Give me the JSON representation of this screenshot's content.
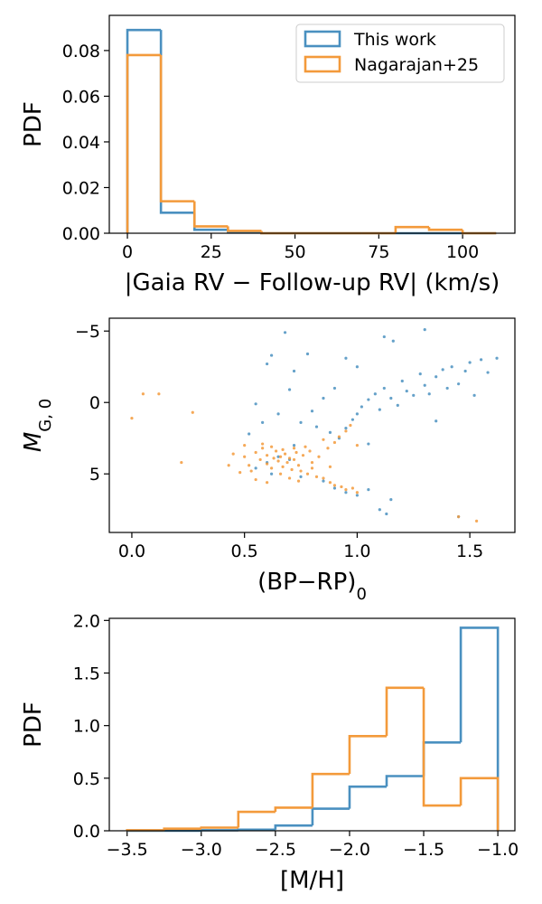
{
  "chart_data": [
    {
      "type": "histogram",
      "xlabel": "|Gaia RV − Follow-up RV| (km/s)",
      "ylabel": "PDF",
      "bins": [
        0,
        10,
        20,
        30,
        40,
        50,
        60,
        70,
        80,
        90,
        100,
        110
      ],
      "series": [
        {
          "name": "This work",
          "color": "#4a90c0",
          "values": [
            0.089,
            0.009,
            0.0015,
            0.0005,
            0,
            0,
            0,
            0,
            0,
            0,
            0
          ]
        },
        {
          "name": "Nagarajan+25",
          "color": "#f39a3b",
          "values": [
            0.078,
            0.014,
            0.003,
            0.001,
            0,
            0,
            0,
            0,
            0.0027,
            0.0015,
            0
          ]
        }
      ],
      "xlim": [
        -5.4,
        115.6
      ],
      "ylim": [
        0,
        0.0954
      ],
      "xticks": [
        0,
        25,
        50,
        75,
        100
      ],
      "yticks": [
        {
          "value": 0,
          "label": "0.00"
        },
        0.02,
        0.04,
        0.06,
        0.08
      ],
      "legend": "upper right"
    },
    {
      "type": "scatter",
      "xlabel": "(BP−RP)",
      "xlabel_sub": "0",
      "ylabel": "M",
      "ylabel_sub": "G, 0",
      "series": [
        {
          "name": "This work",
          "color": "#4a90c0",
          "x": [
            0.92,
            0.95,
            0.98,
            1.0,
            1.02,
            1.05,
            1.08,
            1.1,
            1.12,
            1.15,
            1.18,
            1.2,
            1.22,
            1.25,
            1.28,
            1.3,
            1.32,
            1.35,
            1.38,
            1.4,
            1.42,
            1.45,
            1.48,
            1.5,
            1.52,
            1.55,
            1.58,
            1.62,
            1.12,
            1.0,
            0.9,
            0.85,
            0.8,
            0.75,
            0.7,
            0.6,
            0.62,
            0.68,
            0.72,
            0.78,
            0.95,
            1.16,
            1.3,
            1.35,
            1.05,
            0.88,
            0.82,
            0.55,
            0.58,
            0.65,
            0.52,
            0.6,
            0.65,
            0.7,
            0.72,
            0.75,
            0.9,
            0.95,
            1.0,
            1.1,
            1.13,
            1.15,
            1.05,
            0.85,
            0.62,
            0.55,
            1.45
          ],
          "y": [
            2.5,
            1.8,
            1.2,
            0.8,
            0.3,
            -0.2,
            -0.6,
            0.5,
            -1.0,
            -0.3,
            0.2,
            -1.5,
            -0.8,
            -0.5,
            -2.0,
            -1.2,
            -0.6,
            -1.8,
            -2.3,
            -1.0,
            -2.5,
            -1.3,
            -2.2,
            -2.8,
            -0.5,
            -3.0,
            -2.1,
            -3.1,
            -4.6,
            -2.5,
            -1.0,
            -0.3,
            0.6,
            1.4,
            -0.9,
            -2.7,
            -3.3,
            -4.9,
            -2.2,
            -3.4,
            -3.1,
            -4.3,
            -5.1,
            1.3,
            2.9,
            2.1,
            1.7,
            0.1,
            1.4,
            0.8,
            2.2,
            4.2,
            3.8,
            4.0,
            3.0,
            5.2,
            6.0,
            6.3,
            6.5,
            7.5,
            7.8,
            6.8,
            6.1,
            5.5,
            5.0,
            4.6,
            8.0
          ]
        },
        {
          "name": "Nagarajan+25",
          "color": "#f39a3b",
          "x": [
            0.05,
            0.0,
            0.12,
            0.27,
            0.22,
            0.45,
            0.5,
            0.52,
            0.55,
            0.57,
            0.58,
            0.6,
            0.6,
            0.62,
            0.63,
            0.64,
            0.65,
            0.66,
            0.67,
            0.68,
            0.69,
            0.7,
            0.71,
            0.72,
            0.73,
            0.74,
            0.75,
            0.76,
            0.78,
            0.8,
            0.82,
            0.85,
            0.88,
            0.9,
            0.93,
            0.95,
            0.98,
            1.0,
            0.83,
            0.87,
            0.9,
            0.92,
            0.95,
            0.97,
            1.0,
            0.85,
            0.48,
            0.43,
            0.55,
            0.6,
            0.66,
            0.7,
            0.58,
            0.62,
            0.67,
            0.72,
            0.77,
            0.8,
            0.74,
            0.79,
            1.45,
            1.53,
            0.5,
            0.53,
            0.88
          ],
          "y": [
            -0.6,
            1.1,
            -0.6,
            0.7,
            4.2,
            3.6,
            3.8,
            4.4,
            3.5,
            4.0,
            3.2,
            4.3,
            3.7,
            4.6,
            3.9,
            3.4,
            4.1,
            3.8,
            4.5,
            3.6,
            4.2,
            3.9,
            4.7,
            4.0,
            3.5,
            4.4,
            4.8,
            3.7,
            5.0,
            4.6,
            5.2,
            5.3,
            5.6,
            5.8,
            5.9,
            6.1,
            6.0,
            6.3,
            3.8,
            3.2,
            2.8,
            2.4,
            2.0,
            1.6,
            3.0,
            2.6,
            4.9,
            4.4,
            5.4,
            5.6,
            5.0,
            5.3,
            2.9,
            3.1,
            3.3,
            3.2,
            3.1,
            4.2,
            5.5,
            3.4,
            8.0,
            8.3,
            3.0,
            4.8,
            4.5
          ]
        }
      ],
      "xlim": [
        -0.1,
        1.7
      ],
      "ylim": [
        9.1,
        -5.9
      ],
      "xticks": [
        {
          "value": 0,
          "label": "0.0"
        },
        0.5,
        {
          "value": 1,
          "label": "1.0"
        },
        1.5
      ],
      "yticks": [
        {
          "value": -5,
          "label": "−5"
        },
        0,
        5
      ]
    },
    {
      "type": "histogram",
      "xlabel": "[M/H]",
      "ylabel": "PDF",
      "bins": [
        -3.5,
        -3.25,
        -3.0,
        -2.75,
        -2.5,
        -2.25,
        -2.0,
        -1.75,
        -1.5,
        -1.25,
        -1.0
      ],
      "series": [
        {
          "name": "This work",
          "color": "#4a90c0",
          "values": [
            0,
            0,
            0.005,
            0.01,
            0.05,
            0.21,
            0.42,
            0.52,
            0.84,
            1.93
          ]
        },
        {
          "name": "Nagarajan+25",
          "color": "#f39a3b",
          "values": [
            0.005,
            0.02,
            0.03,
            0.18,
            0.22,
            0.54,
            0.9,
            1.36,
            0.24,
            0.5
          ]
        }
      ],
      "xlim": [
        -3.62,
        -0.885
      ],
      "ylim": [
        0,
        2.02
      ],
      "xticks": [
        {
          "value": -3.5,
          "label": "−3.5"
        },
        {
          "value": -3,
          "label": "−3.0"
        },
        {
          "value": -2.5,
          "label": "−2.5"
        },
        {
          "value": -2,
          "label": "−2.0"
        },
        {
          "value": -1.5,
          "label": "−1.5"
        },
        {
          "value": -1,
          "label": "−1.0"
        }
      ],
      "yticks": [
        {
          "value": 0,
          "label": "0.0"
        },
        0.5,
        {
          "value": 1,
          "label": "1.0"
        },
        1.5,
        {
          "value": 2,
          "label": "2.0"
        }
      ]
    }
  ]
}
